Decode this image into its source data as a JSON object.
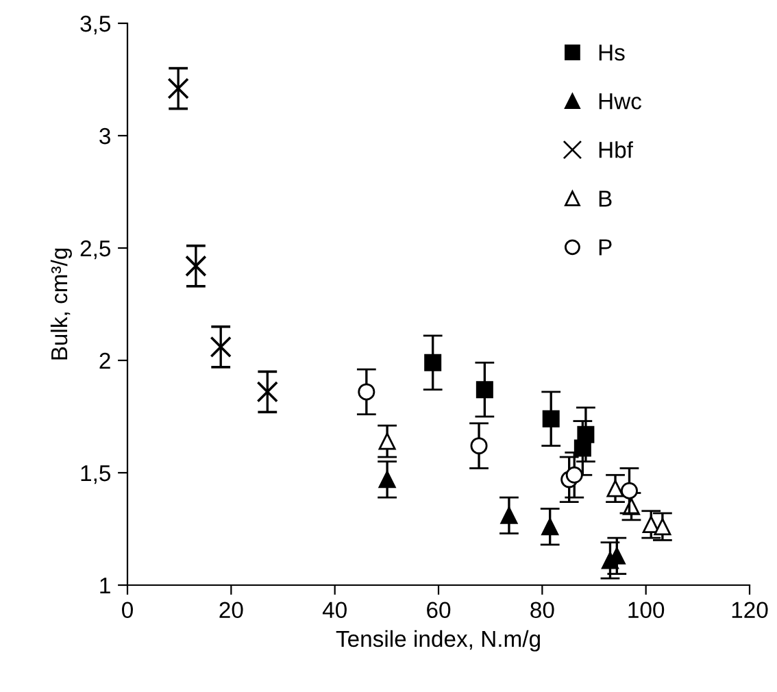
{
  "chart_data": {
    "type": "scatter",
    "xlabel": "Tensile index, N.m/g",
    "ylabel": "Bulk, cm³/g",
    "xlim": [
      0,
      120
    ],
    "xticks": [
      0,
      20,
      40,
      60,
      80,
      100,
      120
    ],
    "ylim": [
      1,
      3.5
    ],
    "yticks": [
      1,
      {
        "value": 1.5,
        "label": "1,5"
      },
      2,
      {
        "value": 2.5,
        "label": "2,5"
      },
      3,
      {
        "value": 3.5,
        "label": "3,5"
      }
    ],
    "grid": false,
    "legend": "top right",
    "series": [
      {
        "name": "Hs",
        "color": "#000000",
        "marker": "square",
        "x": [
          58.9,
          68.9,
          81.7,
          87.8,
          88.4
        ],
        "values": [
          1.99,
          1.87,
          1.74,
          1.61,
          1.67
        ],
        "errors": [
          0.12,
          0.12,
          0.12,
          0.12,
          0.12
        ]
      },
      {
        "name": "Hwc",
        "color": "#000000",
        "marker": "triangle",
        "x": [
          50.1,
          73.6,
          81.5,
          93.1,
          94.4
        ],
        "values": [
          1.47,
          1.31,
          1.26,
          1.11,
          1.13
        ],
        "errors": [
          0.08,
          0.08,
          0.08,
          0.08,
          0.08
        ]
      },
      {
        "name": "Hbf",
        "color": "#000000",
        "marker": "cross",
        "x": [
          9.8,
          13.2,
          18,
          27
        ],
        "values": [
          3.21,
          2.42,
          2.06,
          1.86
        ],
        "errors": [
          0.09,
          0.09,
          0.09,
          0.09
        ]
      },
      {
        "name": "B",
        "color": "#ffffff",
        "marker": "triangle",
        "x": [
          50.1,
          94.1,
          97.2,
          101,
          103.2
        ],
        "values": [
          1.64,
          1.43,
          1.35,
          1.27,
          1.26
        ],
        "errors": [
          0.07,
          0.06,
          0.06,
          0.06,
          0.06
        ]
      },
      {
        "name": "P",
        "color": "#ffffff",
        "marker": "circle",
        "x": [
          46.1,
          67.8,
          85.2,
          86.2,
          96.8
        ],
        "values": [
          1.86,
          1.62,
          1.47,
          1.49,
          1.42
        ],
        "errors": [
          0.1,
          0.1,
          0.1,
          0.1,
          0.1
        ]
      }
    ]
  }
}
